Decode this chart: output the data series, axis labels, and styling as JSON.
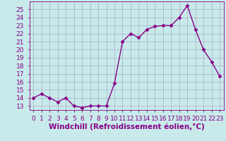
{
  "x": [
    0,
    1,
    2,
    3,
    4,
    5,
    6,
    7,
    8,
    9,
    10,
    11,
    12,
    13,
    14,
    15,
    16,
    17,
    18,
    19,
    20,
    21,
    22,
    23
  ],
  "y": [
    14.0,
    14.5,
    14.0,
    13.5,
    14.0,
    13.0,
    12.8,
    13.0,
    13.0,
    13.0,
    15.8,
    21.0,
    22.0,
    21.5,
    22.5,
    22.9,
    23.0,
    23.0,
    24.0,
    25.5,
    22.5,
    20.0,
    18.5,
    16.7
  ],
  "line_color": "#880088",
  "marker": "D",
  "marker_size": 2.5,
  "line_width": 1.0,
  "xlabel": "Windchill (Refroidissement éolien,°C)",
  "xlabel_fontsize": 7.5,
  "ylim": [
    12.5,
    26.0
  ],
  "xlim": [
    -0.5,
    23.5
  ],
  "yticks": [
    13,
    14,
    15,
    16,
    17,
    18,
    19,
    20,
    21,
    22,
    23,
    24,
    25
  ],
  "xtick_labels": [
    "0",
    "1",
    "2",
    "3",
    "4",
    "5",
    "6",
    "7",
    "8",
    "9",
    "10",
    "11",
    "12",
    "13",
    "14",
    "15",
    "16",
    "17",
    "18",
    "19",
    "20",
    "21",
    "22",
    "23"
  ],
  "background_color": "#c8eaea",
  "grid_color": "#aaaacc",
  "tick_color": "#880088",
  "tick_fontsize": 6.5,
  "title": ""
}
